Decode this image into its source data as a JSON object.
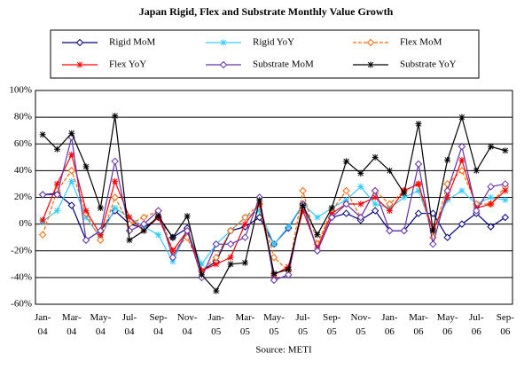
{
  "chart_data": {
    "type": "line",
    "title": "Japan Rigid, Flex and Substrate Monthly Value Growth",
    "source": "Source: METI",
    "categories": [
      "Jan-04",
      null,
      "Mar-04",
      null,
      "May-04",
      null,
      "Jul-04",
      null,
      "Sep-04",
      null,
      "Nov-04",
      null,
      "Jan-05",
      null,
      "Mar-05",
      null,
      "May-05",
      null,
      "Jul-05",
      null,
      "Sep-05",
      null,
      "Nov-05",
      null,
      "Jan-06",
      null,
      "Mar-06",
      null,
      "May-06",
      null,
      "Jul-06",
      null,
      "Sep-06"
    ],
    "ylim": [
      -60,
      100
    ],
    "yticks": [
      {
        "value": -60,
        "label": "-60%"
      },
      {
        "value": -40,
        "label": "-40%"
      },
      {
        "value": -20,
        "label": "-20%"
      },
      {
        "value": 0,
        "label": "0%"
      },
      {
        "value": 20,
        "label": "20%"
      },
      {
        "value": 40,
        "label": "40%"
      },
      {
        "value": 60,
        "label": "60%"
      },
      {
        "value": 80,
        "label": "80%"
      },
      {
        "value": 100,
        "label": "100%"
      }
    ],
    "grid": true,
    "legend": "top",
    "series": [
      {
        "name": "Rigid MoM",
        "color": "#000080",
        "marker": "diamond",
        "dashed": false,
        "values": [
          22,
          23,
          14,
          -12,
          -5,
          10,
          0,
          -3,
          5,
          -10,
          -3,
          -35,
          -28,
          -5,
          -2,
          5,
          -15,
          -3,
          15,
          -20,
          5,
          8,
          3,
          10,
          -5,
          -5,
          8,
          8,
          -10,
          0,
          8,
          -2,
          5
        ]
      },
      {
        "name": "Rigid YoY",
        "color": "#33ccff",
        "marker": "asterisk",
        "dashed": false,
        "values": [
          2,
          10,
          32,
          5,
          -10,
          12,
          5,
          -2,
          -8,
          -28,
          -5,
          -30,
          -15,
          -5,
          5,
          10,
          -15,
          -2,
          15,
          5,
          12,
          18,
          28,
          15,
          12,
          20,
          25,
          -5,
          18,
          25,
          15,
          20,
          18
        ]
      },
      {
        "name": "Flex MoM",
        "color": "#ff6600",
        "marker": "diamond",
        "dashed": true,
        "values": [
          -8,
          25,
          40,
          8,
          -12,
          20,
          0,
          5,
          10,
          -20,
          -10,
          -35,
          -25,
          -5,
          5,
          15,
          -25,
          -35,
          25,
          -15,
          10,
          25,
          5,
          25,
          15,
          25,
          30,
          -10,
          30,
          40,
          15,
          15,
          28
        ]
      },
      {
        "name": "Flex YoY",
        "color": "#ff0000",
        "marker": "asterisk",
        "dashed": false,
        "values": [
          3,
          30,
          52,
          10,
          -8,
          32,
          5,
          -5,
          5,
          -20,
          -5,
          -35,
          -30,
          -25,
          0,
          15,
          -38,
          -32,
          10,
          -18,
          8,
          15,
          15,
          20,
          10,
          25,
          30,
          -5,
          20,
          48,
          12,
          15,
          25
        ]
      },
      {
        "name": "Substrate MoM",
        "color": "#6633aa",
        "marker": "diamond",
        "dashed": false,
        "values": [
          22,
          22,
          65,
          -12,
          -5,
          47,
          -5,
          0,
          10,
          -25,
          -5,
          -40,
          -15,
          -15,
          -10,
          20,
          -42,
          -38,
          15,
          -20,
          5,
          15,
          5,
          25,
          -5,
          -5,
          45,
          -15,
          25,
          58,
          10,
          28,
          30
        ]
      },
      {
        "name": "Substrate YoY",
        "color": "#000000",
        "marker": "asterisk",
        "dashed": false,
        "values": [
          67,
          56,
          68,
          43,
          12,
          81,
          -12,
          -5,
          6,
          -10,
          6,
          -38,
          -50,
          -30,
          -29,
          18,
          -37,
          -34,
          14,
          -8,
          12,
          47,
          38,
          50,
          40,
          23,
          75,
          -5,
          48,
          80,
          40,
          58,
          55
        ]
      }
    ]
  }
}
